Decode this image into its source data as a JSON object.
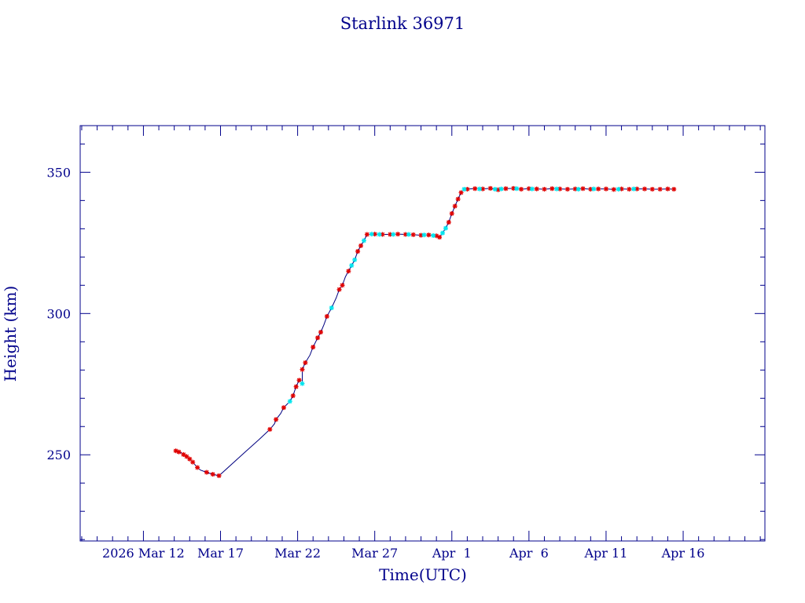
{
  "chart_data": {
    "type": "scatter",
    "title": "Starlink 36971",
    "xlabel": "Time(UTC)",
    "ylabel": "Height (km)",
    "x_units": "days since 2026-03-01",
    "x_tick_labels": [
      {
        "day": 12,
        "label": "2026 Mar 12"
      },
      {
        "day": 17,
        "label": "Mar 17"
      },
      {
        "day": 22,
        "label": "Mar 22"
      },
      {
        "day": 27,
        "label": "Mar 27"
      },
      {
        "day": 32,
        "label": "Apr  1"
      },
      {
        "day": 37,
        "label": "Apr  6"
      },
      {
        "day": 42,
        "label": "Apr 11"
      },
      {
        "day": 47,
        "label": "Apr 16"
      }
    ],
    "y_tick_labels": [
      {
        "value": 250,
        "label": "250"
      },
      {
        "value": 300,
        "label": "300"
      },
      {
        "value": 350,
        "label": "350"
      }
    ],
    "xlim": [
      7.9,
      52.3
    ],
    "ylim": [
      219.5,
      366.5
    ],
    "grid": false,
    "colors": {
      "axes": "#00008b",
      "line": "#000080",
      "marker_red": "#e00000",
      "marker_cyan": "#00e5ee"
    },
    "series": [
      {
        "name": "trajectory",
        "style": "line",
        "points": [
          [
            14.1,
            251.4
          ],
          [
            14.3,
            251.0
          ],
          [
            14.4,
            250.9
          ],
          [
            14.6,
            250.1
          ],
          [
            14.8,
            249.4
          ],
          [
            15.0,
            248.5
          ],
          [
            15.2,
            247.4
          ],
          [
            15.5,
            245.5
          ],
          [
            15.7,
            244.6
          ],
          [
            16.1,
            243.8
          ],
          [
            16.5,
            243.1
          ],
          [
            16.9,
            242.6
          ],
          [
            18.6,
            251.0
          ],
          [
            19.5,
            255.4
          ],
          [
            20.2,
            259.0
          ],
          [
            20.5,
            261.0
          ],
          [
            20.6,
            262.5
          ],
          [
            20.9,
            264.6
          ],
          [
            21.1,
            266.7
          ],
          [
            21.5,
            268.9
          ],
          [
            21.7,
            270.9
          ],
          [
            21.9,
            274.1
          ],
          [
            22.1,
            276.4
          ],
          [
            22.3,
            275.2
          ],
          [
            22.3,
            280.2
          ],
          [
            22.5,
            282.6
          ],
          [
            22.8,
            285.3
          ],
          [
            23.0,
            288.1
          ],
          [
            23.3,
            291.4
          ],
          [
            23.5,
            293.4
          ],
          [
            23.7,
            296.0
          ],
          [
            23.9,
            299.0
          ],
          [
            24.2,
            302.0
          ],
          [
            24.5,
            305.5
          ],
          [
            24.7,
            308.5
          ],
          [
            24.9,
            310.0
          ],
          [
            25.1,
            313.0
          ],
          [
            25.3,
            315.0
          ],
          [
            25.5,
            317.0
          ],
          [
            25.7,
            319.0
          ],
          [
            25.9,
            322.0
          ],
          [
            26.1,
            324.0
          ],
          [
            26.3,
            325.8
          ],
          [
            26.5,
            328.0
          ],
          [
            27.0,
            328.1
          ],
          [
            27.5,
            328.0
          ],
          [
            28.0,
            328.0
          ],
          [
            28.5,
            328.1
          ],
          [
            29.0,
            328.0
          ],
          [
            29.5,
            327.9
          ],
          [
            30.0,
            327.7
          ],
          [
            30.5,
            327.8
          ],
          [
            31.0,
            327.5
          ],
          [
            31.2,
            327.0
          ],
          [
            31.4,
            328.5
          ],
          [
            31.6,
            330.2
          ],
          [
            31.8,
            332.3
          ],
          [
            32.0,
            335.4
          ],
          [
            32.2,
            338.0
          ],
          [
            32.4,
            340.5
          ],
          [
            32.6,
            342.8
          ],
          [
            32.8,
            344.0
          ],
          [
            33.5,
            344.2
          ],
          [
            34.0,
            344.1
          ],
          [
            34.5,
            344.3
          ],
          [
            35.0,
            343.8
          ],
          [
            35.5,
            344.2
          ],
          [
            36.0,
            344.3
          ],
          [
            36.5,
            344.0
          ],
          [
            37.0,
            344.2
          ],
          [
            37.5,
            344.1
          ],
          [
            38.0,
            344.0
          ],
          [
            38.5,
            344.2
          ],
          [
            39.0,
            344.1
          ],
          [
            39.5,
            344.0
          ],
          [
            40.0,
            344.1
          ],
          [
            40.5,
            344.2
          ],
          [
            41.0,
            344.0
          ],
          [
            41.5,
            344.1
          ],
          [
            42.0,
            344.1
          ],
          [
            42.5,
            343.9
          ],
          [
            43.0,
            344.1
          ],
          [
            43.5,
            344.0
          ],
          [
            44.0,
            344.1
          ],
          [
            44.5,
            344.1
          ],
          [
            45.0,
            344.0
          ],
          [
            45.5,
            344.0
          ],
          [
            46.0,
            344.1
          ],
          [
            46.4,
            344.0
          ]
        ]
      },
      {
        "name": "red-markers",
        "style": "star",
        "points": [
          [
            14.1,
            251.4
          ],
          [
            14.3,
            251.0
          ],
          [
            14.6,
            250.1
          ],
          [
            14.8,
            249.4
          ],
          [
            15.0,
            248.5
          ],
          [
            15.2,
            247.4
          ],
          [
            15.5,
            245.5
          ],
          [
            16.1,
            243.8
          ],
          [
            16.5,
            243.1
          ],
          [
            16.9,
            242.6
          ],
          [
            20.2,
            259.0
          ],
          [
            20.6,
            262.5
          ],
          [
            21.1,
            266.7
          ],
          [
            21.7,
            270.9
          ],
          [
            21.9,
            274.1
          ],
          [
            22.1,
            276.4
          ],
          [
            22.3,
            280.2
          ],
          [
            22.5,
            282.6
          ],
          [
            23.0,
            288.1
          ],
          [
            23.3,
            291.4
          ],
          [
            23.5,
            293.4
          ],
          [
            23.9,
            299.0
          ],
          [
            24.7,
            308.5
          ],
          [
            24.9,
            310.0
          ],
          [
            25.3,
            315.0
          ],
          [
            25.9,
            322.0
          ],
          [
            26.1,
            324.0
          ],
          [
            26.5,
            328.0
          ],
          [
            27.0,
            328.1
          ],
          [
            27.5,
            328.0
          ],
          [
            28.0,
            328.0
          ],
          [
            28.5,
            328.1
          ],
          [
            29.0,
            328.0
          ],
          [
            29.5,
            327.9
          ],
          [
            30.0,
            327.7
          ],
          [
            30.5,
            327.8
          ],
          [
            31.0,
            327.5
          ],
          [
            31.2,
            327.0
          ],
          [
            31.8,
            332.3
          ],
          [
            32.0,
            335.4
          ],
          [
            32.2,
            338.0
          ],
          [
            32.4,
            340.5
          ],
          [
            32.6,
            342.8
          ],
          [
            33.0,
            344.0
          ],
          [
            33.5,
            344.2
          ],
          [
            34.0,
            344.1
          ],
          [
            34.5,
            344.3
          ],
          [
            35.0,
            343.8
          ],
          [
            35.5,
            344.2
          ],
          [
            36.0,
            344.3
          ],
          [
            36.5,
            344.0
          ],
          [
            37.0,
            344.2
          ],
          [
            37.5,
            344.1
          ],
          [
            38.0,
            344.0
          ],
          [
            38.5,
            344.2
          ],
          [
            39.0,
            344.1
          ],
          [
            39.5,
            344.0
          ],
          [
            40.0,
            344.1
          ],
          [
            40.5,
            344.2
          ],
          [
            41.0,
            344.0
          ],
          [
            41.5,
            344.1
          ],
          [
            42.0,
            344.1
          ],
          [
            42.5,
            343.9
          ],
          [
            43.0,
            344.1
          ],
          [
            43.5,
            344.0
          ],
          [
            44.0,
            344.1
          ],
          [
            44.5,
            344.1
          ],
          [
            45.0,
            344.0
          ],
          [
            45.5,
            344.0
          ],
          [
            46.0,
            344.1
          ],
          [
            46.4,
            344.0
          ]
        ]
      },
      {
        "name": "cyan-markers",
        "style": "star",
        "points": [
          [
            21.5,
            268.9
          ],
          [
            22.3,
            275.2
          ],
          [
            24.2,
            302.0
          ],
          [
            25.5,
            317.0
          ],
          [
            25.7,
            319.0
          ],
          [
            26.3,
            325.8
          ],
          [
            26.8,
            328.1
          ],
          [
            27.3,
            328.0
          ],
          [
            28.2,
            328.0
          ],
          [
            29.2,
            328.0
          ],
          [
            30.2,
            327.8
          ],
          [
            30.8,
            327.6
          ],
          [
            31.4,
            328.5
          ],
          [
            31.6,
            330.2
          ],
          [
            32.8,
            344.0
          ],
          [
            33.8,
            344.1
          ],
          [
            34.8,
            344.0
          ],
          [
            35.2,
            344.1
          ],
          [
            36.2,
            344.2
          ],
          [
            37.2,
            344.1
          ],
          [
            38.8,
            344.1
          ],
          [
            40.2,
            344.0
          ],
          [
            41.2,
            344.1
          ],
          [
            42.8,
            344.0
          ],
          [
            43.8,
            344.1
          ]
        ]
      }
    ]
  }
}
